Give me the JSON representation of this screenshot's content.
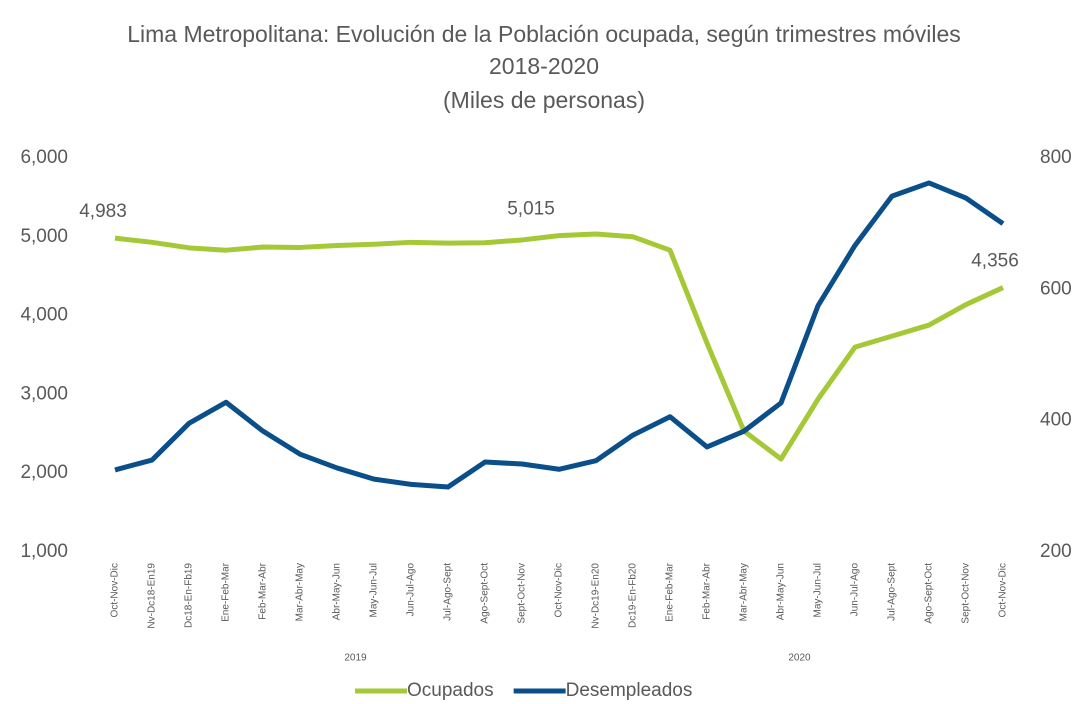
{
  "chart_data": {
    "type": "line",
    "title": "Lima Metropolitana: Evolución de la Población ocupada, según trimestres móviles 2018-2020",
    "subtitle": "(Miles de personas)",
    "categories": [
      "Oct-Nov-Dic",
      "Nv-Dc18-En19",
      "Dc18-En-Fb19",
      "Ene-Feb-Mar",
      "Feb-Mar-Abr",
      "Mar-Abr-May",
      "Abr-May-Jun",
      "May-Jun-Jul",
      "Jun-Jul-Ago",
      "Jul-Ago-Sept",
      "Ago-Sept-Oct",
      "Sept-Oct-Nov",
      "Oct-Nov-Dic",
      "Nv-Dc19-En20",
      "Dc19-En-Fb20",
      "Ene-Feb-Mar",
      "Feb-Mar-Abr",
      "Mar-Abr-May",
      "Abr-May-Jun",
      "May-Jun-Jul",
      "Jun-Jul-Ago",
      "Jul-Ago-Sept",
      "Ago-Sept-Oct",
      "Sept-Oct-Nov",
      "Oct-Nov-Dic"
    ],
    "groups": [
      {
        "label": "2019",
        "from": 1,
        "to": 12
      },
      {
        "label": "2020",
        "from": 13,
        "to": 24
      }
    ],
    "series": [
      {
        "name": "Ocupados",
        "color": "#a5c936",
        "values": [
          4983,
          4930,
          4860,
          4830,
          4870,
          4865,
          4890,
          4905,
          4930,
          4920,
          4925,
          4960,
          5015,
          5035,
          5000,
          4830,
          3650,
          2535,
          2180,
          2940,
          3600,
          3740,
          3880,
          4140,
          4356
        ],
        "value_labels": [
          "4,983",
          null,
          null,
          null,
          null,
          null,
          null,
          null,
          null,
          null,
          null,
          null,
          "5,015",
          null,
          null,
          null,
          null,
          null,
          null,
          null,
          null,
          null,
          null,
          null,
          "4,356"
        ]
      },
      {
        "name": "Desempleados",
        "color": "#0a4f8a",
        "axis": "y2",
        "values": [
          325,
          340,
          396,
          428,
          384,
          349,
          328,
          311,
          303,
          299,
          337,
          334,
          326,
          339,
          378,
          406,
          360,
          384,
          427,
          575,
          667,
          742,
          762,
          739,
          700
        ],
        "value_labels": [
          null,
          null,
          null,
          null,
          null,
          null,
          null,
          null,
          null,
          null,
          null,
          null,
          null,
          null,
          null,
          null,
          null,
          null,
          null,
          null,
          null,
          null,
          null,
          null,
          null
        ]
      }
    ],
    "ylim": [
      1000,
      6000
    ],
    "yticks": [
      {
        "value": 1000,
        "label": "1,000"
      },
      {
        "value": 2000,
        "label": "2,000"
      },
      {
        "value": 3000,
        "label": "3,000"
      },
      {
        "value": 4000,
        "label": "4,000"
      },
      {
        "value": 5000,
        "label": "5,000"
      },
      {
        "value": 6000,
        "label": "6,000"
      }
    ],
    "y2lim": [
      200,
      800
    ],
    "y2ticks": [
      200,
      400,
      600,
      800
    ],
    "grid": false,
    "legend": "bottom"
  }
}
